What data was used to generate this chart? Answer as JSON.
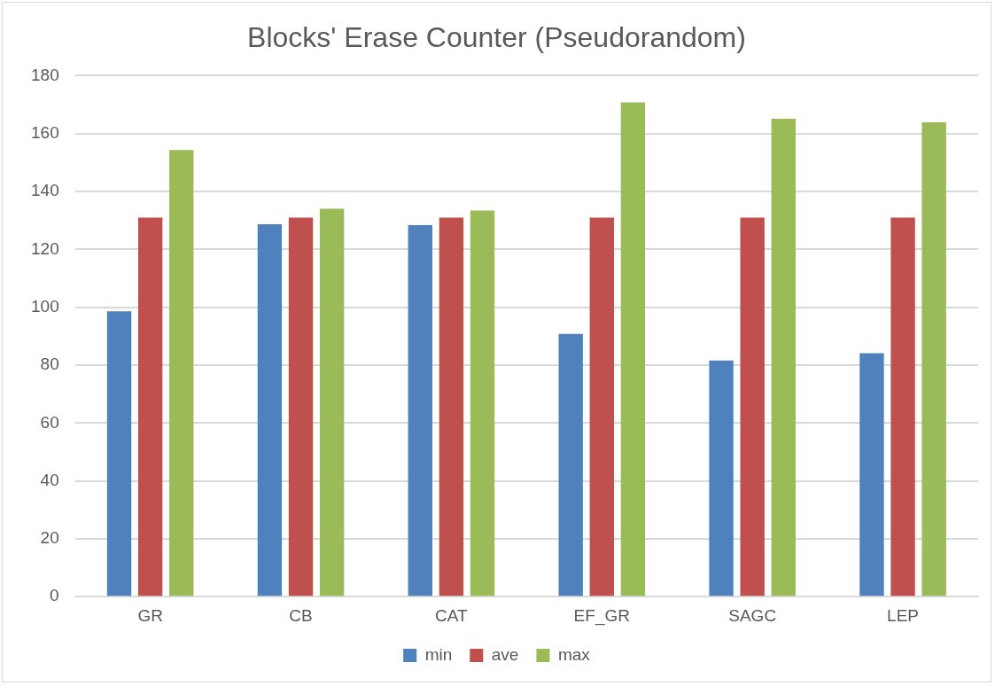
{
  "chart_data": {
    "type": "bar",
    "title": "Blocks' Erase Counter (Pseudorandom)",
    "categories": [
      "GR",
      "CB",
      "CAT",
      "EF_GR",
      "SAGC",
      "LEP"
    ],
    "series": [
      {
        "name": "min",
        "color": "#4f81bd",
        "values": [
          98.6,
          128.7,
          128.4,
          90.8,
          81.6,
          84.1
        ]
      },
      {
        "name": "ave",
        "color": "#c0504d",
        "values": [
          131,
          131,
          131,
          131,
          131,
          131
        ]
      },
      {
        "name": "max",
        "color": "#9bbb59",
        "values": [
          154.3,
          134,
          133.4,
          170.8,
          165.1,
          163.9
        ]
      }
    ],
    "ylim": [
      0,
      180
    ],
    "yticks": [
      0,
      20,
      40,
      60,
      80,
      100,
      120,
      140,
      160,
      180
    ],
    "grid": "y",
    "legend": "bottom"
  }
}
